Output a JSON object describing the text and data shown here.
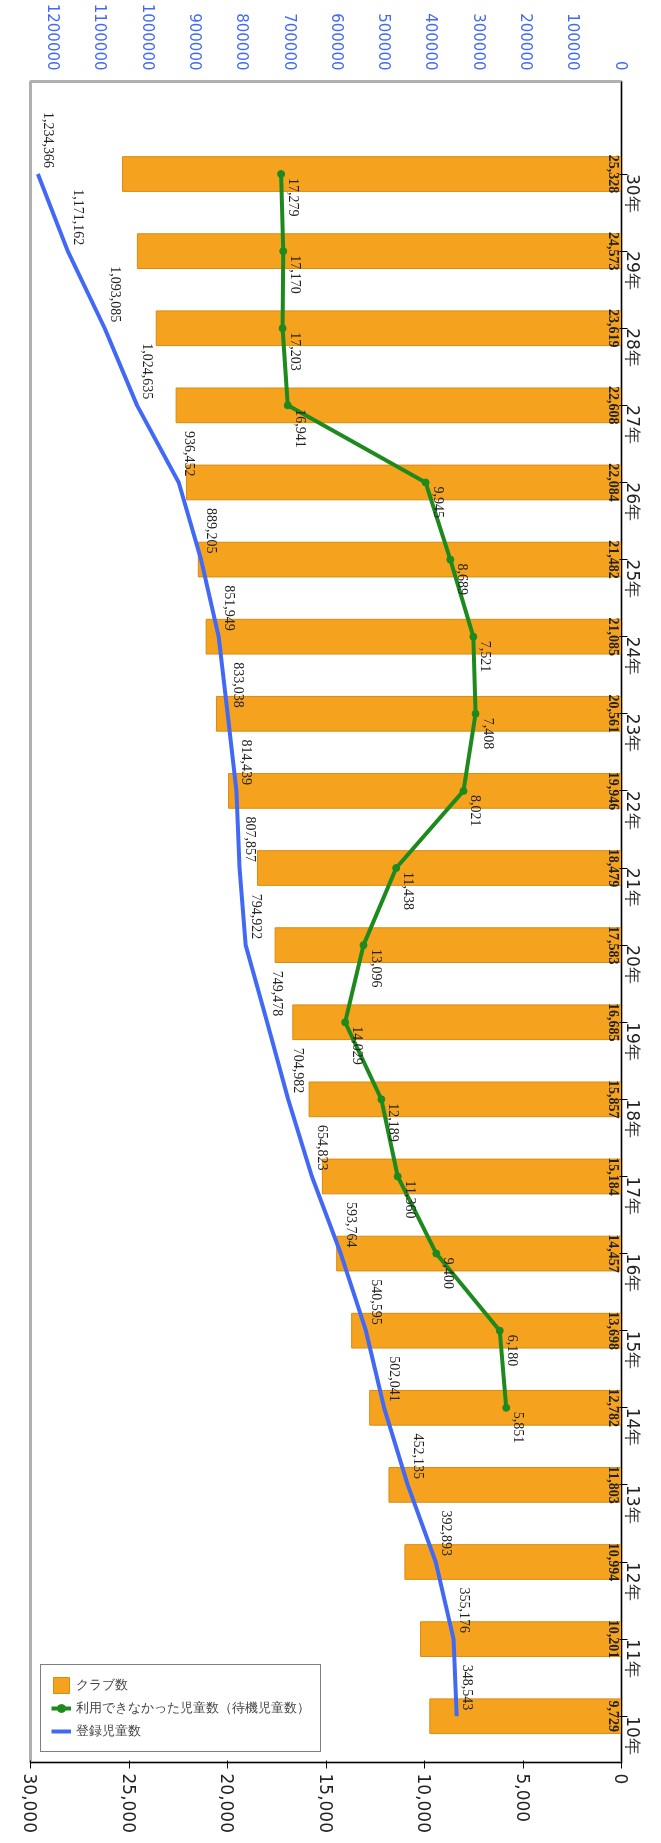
{
  "chart_data": {
    "type": "bar",
    "orientation": "horizontal",
    "categories": [
      "30年",
      "29年",
      "28年",
      "27年",
      "26年",
      "25年",
      "24年",
      "23年",
      "22年",
      "21年",
      "20年",
      "19年",
      "18年",
      "17年",
      "16年",
      "15年",
      "14年",
      "13年",
      "12年",
      "11年",
      "10年"
    ],
    "series": [
      {
        "name": "クラブ数",
        "color": "#f5a31f",
        "values": [
          25328,
          24573,
          23619,
          22608,
          22084,
          21482,
          21085,
          20561,
          19946,
          18479,
          17583,
          16685,
          15857,
          15184,
          14457,
          13698,
          12782,
          11803,
          10994,
          10201,
          9729
        ],
        "value_labels": [
          "25,328",
          "24,573",
          "23,619",
          "22,608",
          "22,084",
          "21,482",
          "21,085",
          "20,561",
          "19,946",
          "18,479",
          "17,583",
          "16,685",
          "15,857",
          "15,184",
          "14,457",
          "13,698",
          "12,782",
          "11,803",
          "10,994",
          "10,201",
          "9,729"
        ]
      },
      {
        "name": "利用できなかった児童数（待機児童数）",
        "type": "line",
        "color": "#1e8a1e",
        "marker": "circle",
        "values": [
          17279,
          17170,
          17203,
          16941,
          9945,
          8689,
          7521,
          7408,
          8021,
          11438,
          13096,
          14029,
          12189,
          11360,
          9400,
          6180,
          5851,
          null,
          null,
          null,
          null
        ],
        "value_labels": [
          "17,279",
          "17,170",
          "17,203",
          "16,941",
          "9,945",
          "8,689",
          "7,521",
          "7,408",
          "8,021",
          "11,438",
          "13,096",
          "14,029",
          "12,189",
          "11,360",
          "9,400",
          "6,180",
          "5,851",
          null,
          null,
          null,
          null
        ]
      },
      {
        "name": "登録児童数",
        "type": "line",
        "color": "#4169f5",
        "axis": "x2",
        "marker": "none",
        "values": [
          1234366,
          1171162,
          1093085,
          1024635,
          936452,
          889205,
          851949,
          833038,
          814439,
          807857,
          794922,
          749478,
          704982,
          654823,
          593764,
          540595,
          502041,
          452135,
          392893,
          355176,
          348543
        ],
        "value_labels": [
          "1,234,366",
          "1,171,162",
          "1,093,085",
          "1,024,635",
          "936,452",
          "889,205",
          "851,949",
          "833,038",
          "814,439",
          "807,857",
          "794,922",
          "749,478",
          "704,982",
          "654,823",
          "593,764",
          "540,595",
          "502,041",
          "452,135",
          "392,893",
          "355,176",
          "348,543"
        ]
      }
    ],
    "xlim": [
      30000,
      0
    ],
    "xticks": [
      {
        "value": 0,
        "label": "0"
      },
      {
        "value": 5000,
        "label": "5,000"
      },
      {
        "value": 10000,
        "label": "10,000"
      },
      {
        "value": 15000,
        "label": "15,000"
      },
      {
        "value": 20000,
        "label": "20,000"
      },
      {
        "value": 25000,
        "label": "25,000"
      },
      {
        "value": 30000,
        "label": "30,000"
      }
    ],
    "x2lim": [
      1250000,
      0
    ],
    "x2ticks": [
      0,
      100000,
      200000,
      300000,
      400000,
      500000,
      600000,
      700000,
      800000,
      900000,
      1000000,
      1100000,
      1200000
    ],
    "grid": false,
    "legend": "bottom left"
  }
}
